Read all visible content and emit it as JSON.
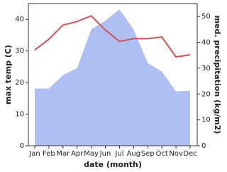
{
  "chart_data": {
    "type": "area-line",
    "x_label": "date (month)",
    "y_label": "max temp (C)",
    "y2_label": "med. precipitation (kg/m2)",
    "categories": [
      "Jan",
      "Feb",
      "Mar",
      "Apr",
      "May",
      "Jun",
      "Jul",
      "Aug",
      "Sep",
      "Oct",
      "Nov",
      "Dec"
    ],
    "series": [
      {
        "name": "med. precipitation",
        "color": "#b0bff2",
        "axis": "y2",
        "values": [
          22.1,
          22.1,
          27.3,
          30,
          45,
          48.4,
          52.7,
          45,
          32,
          28.7,
          21,
          21.3
        ]
      },
      {
        "name": "max temp",
        "color": "#cd5558",
        "values": [
          30.3,
          33.7,
          38.2,
          39.3,
          41.1,
          36.6,
          33,
          33.9,
          33.9,
          34.4,
          28.1,
          28.8
        ]
      }
    ],
    "ylim": [
      0,
      45
    ],
    "yticks": [
      0,
      10,
      20,
      30,
      40
    ],
    "y2lim": [
      0,
      55
    ],
    "y2ticks": [
      0,
      10,
      20,
      30,
      40,
      50
    ]
  }
}
